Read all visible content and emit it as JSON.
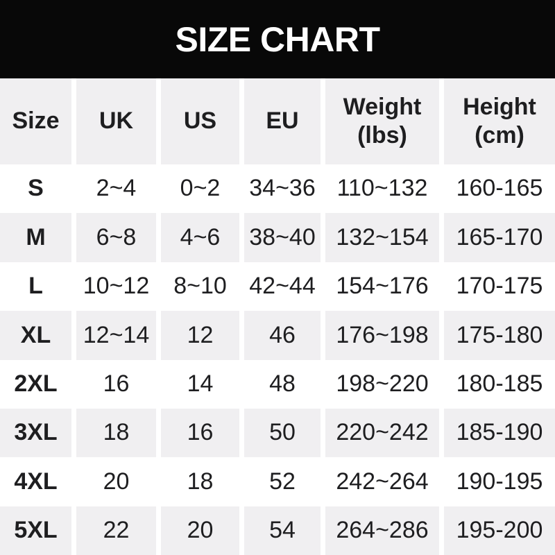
{
  "banner": {
    "title": "SIZE CHART"
  },
  "header": [
    {
      "line1": "Size"
    },
    {
      "line1": "UK"
    },
    {
      "line1": "US"
    },
    {
      "line1": "EU"
    },
    {
      "line1": "Weight",
      "line2": "(lbs)"
    },
    {
      "line1": "Height",
      "line2": "(cm)"
    }
  ],
  "chart_data": {
    "type": "table",
    "title": "SIZE CHART",
    "columns": [
      "Size",
      "UK",
      "US",
      "EU",
      "Weight (lbs)",
      "Height (cm)"
    ],
    "rows": [
      [
        "S",
        "2~4",
        "0~2",
        "34~36",
        "110~132",
        "160-165"
      ],
      [
        "M",
        "6~8",
        "4~6",
        "38~40",
        "132~154",
        "165-170"
      ],
      [
        "L",
        "10~12",
        "8~10",
        "42~44",
        "154~176",
        "170-175"
      ],
      [
        "XL",
        "12~14",
        "12",
        "46",
        "176~198",
        "175-180"
      ],
      [
        "2XL",
        "16",
        "14",
        "48",
        "198~220",
        "180-185"
      ],
      [
        "3XL",
        "18",
        "16",
        "50",
        "220~242",
        "185-190"
      ],
      [
        "4XL",
        "20",
        "18",
        "52",
        "242~264",
        "190-195"
      ],
      [
        "5XL",
        "22",
        "20",
        "54",
        "264~286",
        "195-200"
      ]
    ],
    "layout": {
      "row_striping": "header and even data rows light gray, others white",
      "range_separator_body": "~",
      "range_separator_height": "-"
    }
  },
  "colors": {
    "banner_bg": "#080808",
    "banner_text": "#ffffff",
    "row_alt_bg": "#f0eff1",
    "text": "#1e1e20"
  }
}
